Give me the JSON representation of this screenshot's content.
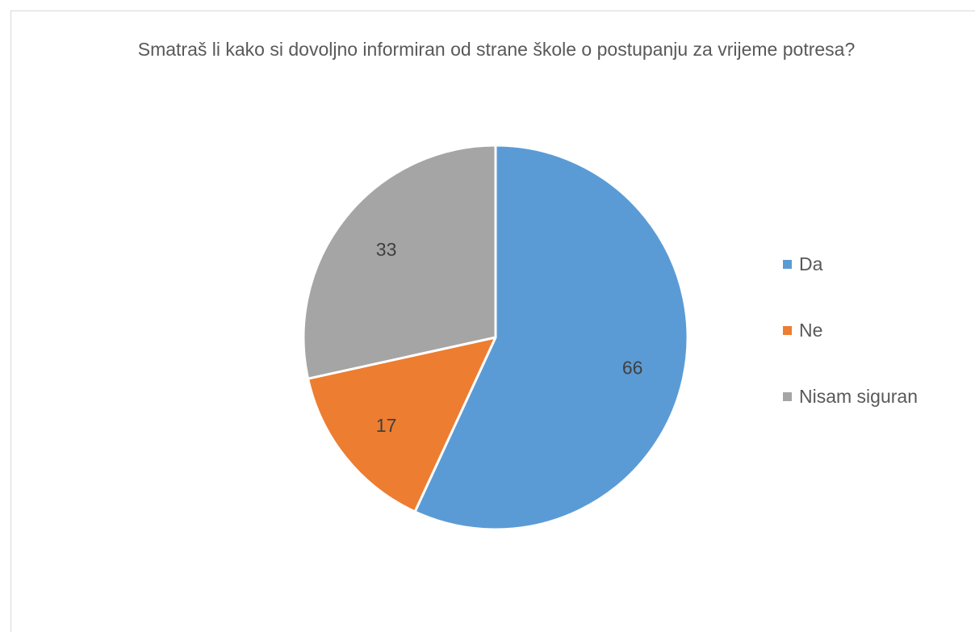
{
  "chart_data": {
    "type": "pie",
    "title": "Smatraš li kako si dovoljno informiran od strane škole o postupanju za vrijeme potresa?",
    "categories": [
      "Da",
      "Ne",
      "Nisam siguran"
    ],
    "values": [
      66,
      17,
      33
    ],
    "colors": [
      "#5b9bd5",
      "#ed7d31",
      "#a5a5a5"
    ],
    "data_labels": [
      "66",
      "17",
      "33"
    ],
    "legend_position": "right",
    "start_angle_deg": 0,
    "direction": "clockwise"
  }
}
